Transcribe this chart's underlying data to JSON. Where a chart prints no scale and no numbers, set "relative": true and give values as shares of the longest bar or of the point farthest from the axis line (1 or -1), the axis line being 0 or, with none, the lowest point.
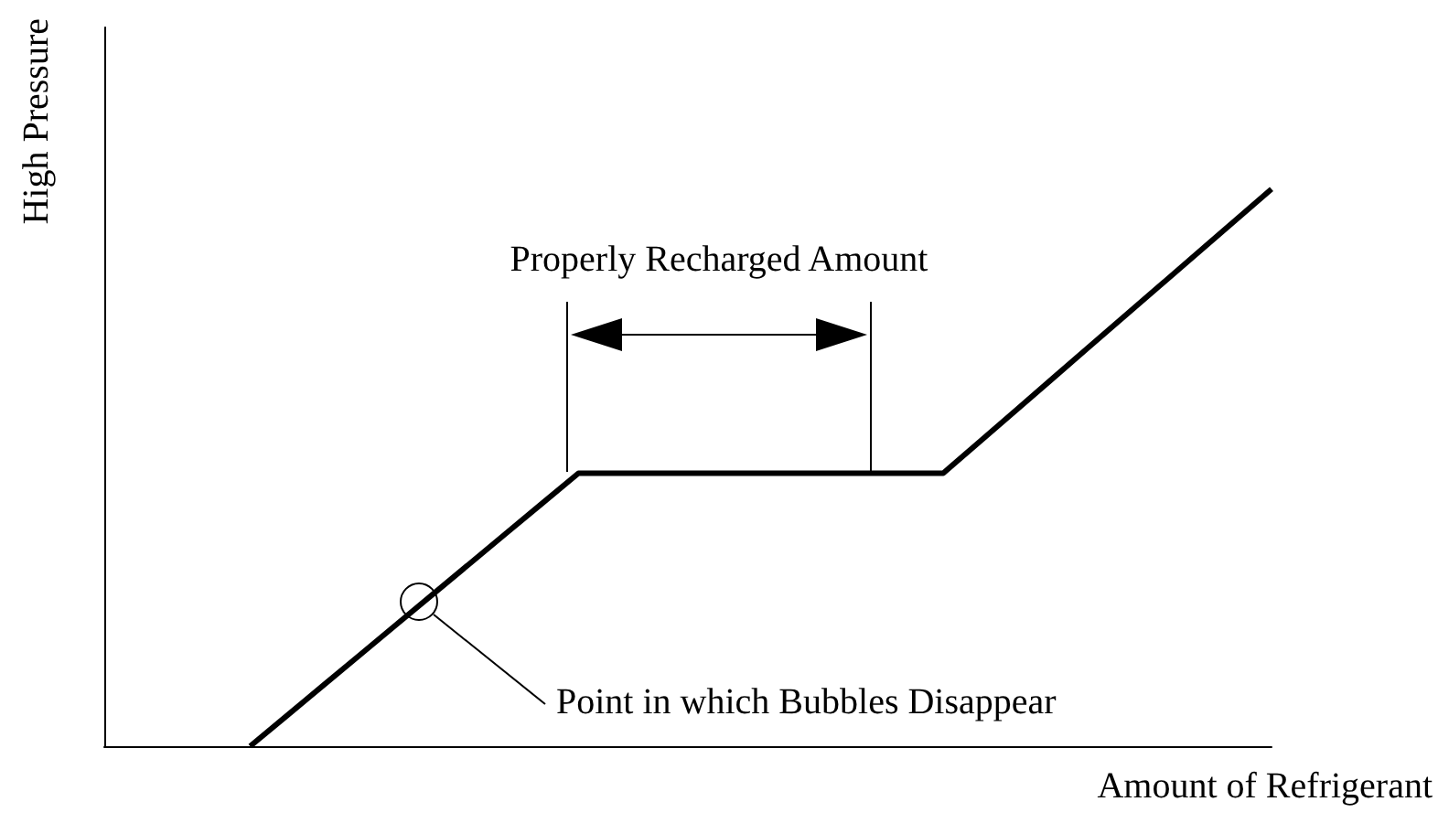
{
  "chart_data": {
    "type": "line",
    "relative": true,
    "xlabel": "Amount of Refrigerant",
    "ylabel": "High Pressure",
    "categories": [
      null,
      null,
      null,
      null,
      null,
      null,
      null,
      null,
      null,
      null,
      null,
      null,
      null,
      null,
      null,
      null,
      null,
      null,
      null,
      null,
      null,
      null,
      null,
      null,
      null,
      null,
      null,
      null,
      null,
      null,
      null,
      null,
      null
    ],
    "grid": false,
    "marker": "none",
    "line_style": "solid",
    "series": [
      {
        "color": "#000000",
        "values": [
          null,
          null,
          null,
          null,
          0,
          0.0544,
          0.1089,
          0.1633,
          0.2178,
          0.2722,
          0.3267,
          0.3811,
          0.4356,
          0.49,
          0.49,
          0.49,
          0.49,
          0.49,
          0.49,
          0.49,
          0.49,
          0.49,
          0.49,
          0.49,
          0.5467,
          0.6033,
          0.66,
          0.7167,
          0.7733,
          0.83,
          0.8867,
          0.9433,
          1
        ]
      }
    ],
    "annotations": [
      "Properly Recharged Amount",
      "Point in which Bubbles Disappear"
    ]
  }
}
